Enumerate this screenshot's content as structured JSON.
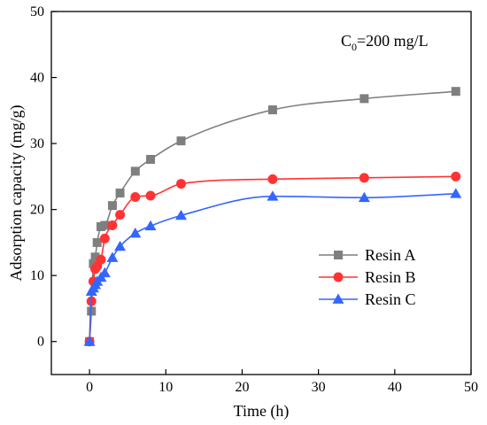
{
  "chart_data": {
    "type": "line",
    "title": "",
    "xlabel": "Time (h)",
    "ylabel": "Adsorption capacity (mg/g)",
    "xlim": [
      -5,
      50
    ],
    "ylim": [
      -5,
      50
    ],
    "xticks": [
      0,
      10,
      20,
      30,
      40,
      50
    ],
    "yticks": [
      0,
      10,
      20,
      30,
      40,
      50
    ],
    "grid": false,
    "legend_position": "bottom-right",
    "annotation": {
      "base": "C",
      "sub": "0",
      "rest": "=200 mg/L"
    },
    "series": [
      {
        "name": "Resin A",
        "color": "#7f7f7f",
        "marker": "square",
        "x": [
          0,
          0.25,
          0.5,
          0.75,
          1,
          1.5,
          2,
          3,
          4,
          6,
          8,
          12,
          24,
          36,
          48
        ],
        "y": [
          0,
          4.6,
          11.8,
          12.8,
          15.0,
          17.4,
          17.6,
          20.6,
          22.5,
          25.8,
          27.6,
          30.4,
          35.1,
          36.8,
          37.9
        ]
      },
      {
        "name": "Resin B",
        "color": "#ff3333",
        "marker": "circle",
        "x": [
          0,
          0.25,
          0.5,
          0.75,
          1,
          1.5,
          2,
          3,
          4,
          6,
          8,
          12,
          24,
          36,
          48
        ],
        "y": [
          0,
          6.1,
          9.1,
          11.0,
          11.4,
          12.4,
          15.6,
          17.6,
          19.2,
          21.9,
          22.1,
          23.9,
          24.6,
          24.8,
          25.0
        ]
      },
      {
        "name": "Resin C",
        "color": "#3366ff",
        "marker": "triangle",
        "x": [
          0,
          0.25,
          0.5,
          0.75,
          1,
          1.5,
          2,
          3,
          4,
          6,
          8,
          12,
          24,
          36,
          48
        ],
        "y": [
          0,
          7.6,
          8.1,
          8.6,
          9.1,
          9.7,
          10.4,
          12.7,
          14.4,
          16.4,
          17.5,
          19.1,
          22.0,
          21.8,
          22.4
        ]
      }
    ]
  }
}
